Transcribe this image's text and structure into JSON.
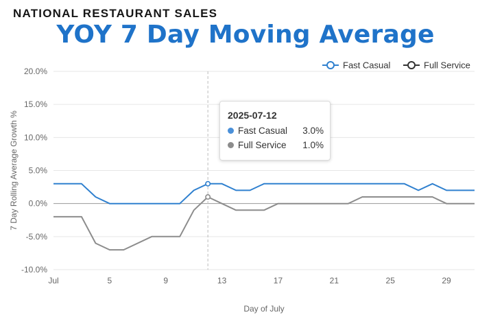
{
  "header": {
    "kicker": "NATIONAL RESTAURANT SALES",
    "title": "YOY 7 Day Moving Average"
  },
  "chart_data": {
    "type": "line",
    "title": "YOY 7 Day Moving Average",
    "xlabel": "Day of July",
    "ylabel": "7 Day Rolling Average Growth %",
    "x_tick_labels": [
      {
        "day": 1,
        "label": "Jul"
      },
      {
        "day": 5,
        "label": "5"
      },
      {
        "day": 9,
        "label": "9"
      },
      {
        "day": 13,
        "label": "13"
      },
      {
        "day": 17,
        "label": "17"
      },
      {
        "day": 21,
        "label": "21"
      },
      {
        "day": 25,
        "label": "25"
      },
      {
        "day": 29,
        "label": "29"
      }
    ],
    "xlim": [
      1,
      31
    ],
    "ylim": [
      -10,
      20
    ],
    "y_ticks": [
      20,
      15,
      10,
      5,
      0,
      -5,
      -10
    ],
    "y_tick_labels": [
      "20.0%",
      "15.0%",
      "10.0%",
      "5.0%",
      "0.0%",
      "-5.0%",
      "-10.0%"
    ],
    "grid": true,
    "legend_position": "top-right",
    "series": [
      {
        "name": "Fast Casual",
        "color": "#2f80cf",
        "points": [
          [
            1,
            3
          ],
          [
            3,
            3
          ],
          [
            4,
            1
          ],
          [
            5,
            0
          ],
          [
            10,
            0
          ],
          [
            11,
            2
          ],
          [
            12,
            3
          ],
          [
            13,
            3
          ],
          [
            14,
            2
          ],
          [
            15,
            2
          ],
          [
            16,
            3
          ],
          [
            26,
            3
          ],
          [
            27,
            2
          ],
          [
            28,
            3
          ],
          [
            29,
            2
          ],
          [
            31,
            2
          ]
        ]
      },
      {
        "name": "Full Service",
        "color": "#8c8c8c",
        "points": [
          [
            1,
            -2
          ],
          [
            3,
            -2
          ],
          [
            4,
            -6
          ],
          [
            5,
            -7
          ],
          [
            6,
            -7
          ],
          [
            8,
            -5
          ],
          [
            10,
            -5
          ],
          [
            11,
            -1
          ],
          [
            12,
            1
          ],
          [
            13,
            0
          ],
          [
            14,
            -1
          ],
          [
            16,
            -1
          ],
          [
            17,
            0
          ],
          [
            22,
            0
          ],
          [
            23,
            1
          ],
          [
            28,
            1
          ],
          [
            29,
            0
          ],
          [
            31,
            0
          ]
        ]
      }
    ],
    "hover": {
      "day": 12,
      "date": "2025-07-12",
      "rows": [
        {
          "name": "Fast Casual",
          "value": "3.0%",
          "color": "#4a90d9"
        },
        {
          "name": "Full Service",
          "value": "1.0%",
          "color": "#8c8c8c"
        }
      ]
    }
  }
}
